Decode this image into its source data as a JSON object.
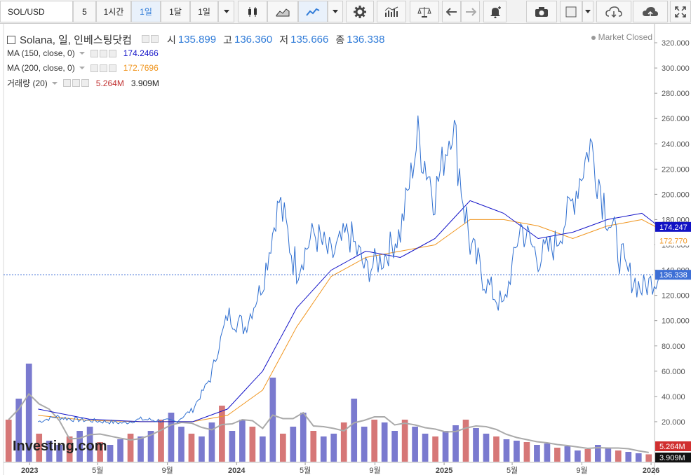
{
  "toolbar": {
    "symbol": "SOL/USD",
    "interval": "5",
    "btn_1h": "1시간",
    "btn_1d": "1일",
    "btn_1mo": "1달",
    "btn_range": "1일",
    "icons": [
      "chevron-down-icon",
      "candlestick-icon",
      "area-chart-icon",
      "line-chart-icon",
      "chevron-down-icon",
      "gear-icon",
      "indicators-icon",
      "balance-scale-icon",
      "undo-icon",
      "redo-icon",
      "alert-bell-icon",
      "camera-icon",
      "color-box-icon",
      "chevron-down-icon",
      "cloud-download-icon",
      "cloud-upload-icon",
      "fullscreen-icon"
    ]
  },
  "legend": {
    "title": "Solana, 일, 인베스팅닷컴",
    "open_label": "시",
    "open": "135.899",
    "high_label": "고",
    "high": "136.360",
    "low_label": "저",
    "low": "135.666",
    "close_label": "종",
    "close": "136.338",
    "ma150_label": "MA (150, close, 0)",
    "ma150_value": "174.2466",
    "ma200_label": "MA (200, close, 0)",
    "ma200_value": "172.7696",
    "vol_label": "거래량 (20)",
    "vol_value": "5.264M",
    "vol_ma_value": "3.909M",
    "market_status": "Market Closed"
  },
  "colors": {
    "price": "#2f6fd0",
    "ma150": "#1414c8",
    "ma200": "#f0951e",
    "vol_up": "#4d4dbf",
    "vol_down": "#c84a4a",
    "last_price_tag": "#3d6fd6",
    "ma150_tag": "#1212c4",
    "ma200_tag": "#f0951e"
  },
  "watermark": "Investing.com",
  "chart_data": {
    "type": "line",
    "y_ticks": [
      "20.000",
      "40.000",
      "60.000",
      "80.000",
      "100.000",
      "120.000",
      "140.000",
      "160.000",
      "180.000",
      "200.000",
      "220.000",
      "240.000",
      "260.000",
      "280.000",
      "300.000",
      "320.000"
    ],
    "x_labels": [
      "2023",
      "5월",
      "9월",
      "2024",
      "5월",
      "9월",
      "2025",
      "5월",
      "9월",
      "2026"
    ],
    "ylim": [
      0,
      325
    ],
    "last_price_label": "136.338",
    "ma150_label": "174.247",
    "ma200_label": "172.770",
    "vol_label": "5.264M",
    "vol_ma_label": "3.909M",
    "series": [
      {
        "name": "Solana",
        "x": [
          "2023-01",
          "2023-02",
          "2023-03",
          "2023-04",
          "2023-05",
          "2023-06",
          "2023-07",
          "2023-08",
          "2023-09",
          "2023-10",
          "2023-11",
          "2023-12",
          "2024-01",
          "2024-02",
          "2024-03",
          "2024-04",
          "2024-05",
          "2024-06",
          "2024-07",
          "2024-08",
          "2024-09",
          "2024-10",
          "2024-11",
          "2024-12",
          "2025-01",
          "2025-02",
          "2025-03",
          "2025-04",
          "2025-05",
          "2025-06",
          "2025-07",
          "2025-08",
          "2025-09",
          "2025-10",
          "2025-11",
          "2025-12",
          "2026-01"
        ],
        "values": [
          20,
          24,
          22,
          21,
          20,
          19,
          22,
          21,
          20,
          30,
          55,
          105,
          95,
          130,
          195,
          140,
          170,
          150,
          170,
          140,
          150,
          170,
          245,
          200,
          258,
          160,
          130,
          110,
          175,
          150,
          160,
          195,
          240,
          185,
          140,
          125,
          136
        ]
      },
      {
        "name": "MA (150, close, 0)",
        "x": [
          "2023-01",
          "2023-04",
          "2023-07",
          "2023-10",
          "2023-12",
          "2024-02",
          "2024-04",
          "2024-06",
          "2024-08",
          "2024-10",
          "2024-12",
          "2025-02",
          "2025-04",
          "2025-06",
          "2025-08",
          "2025-10",
          "2025-12",
          "2026-01"
        ],
        "values": [
          30,
          22,
          20,
          20,
          30,
          60,
          110,
          140,
          155,
          150,
          165,
          195,
          185,
          165,
          170,
          180,
          185,
          174.2466
        ]
      },
      {
        "name": "MA (200, close, 0)",
        "x": [
          "2023-01",
          "2023-04",
          "2023-07",
          "2023-10",
          "2023-12",
          "2024-02",
          "2024-04",
          "2024-06",
          "2024-08",
          "2024-10",
          "2024-12",
          "2025-02",
          "2025-04",
          "2025-06",
          "2025-08",
          "2025-10",
          "2025-12",
          "2026-01"
        ],
        "values": [
          25,
          21,
          20,
          20,
          25,
          45,
          95,
          135,
          150,
          155,
          160,
          180,
          180,
          175,
          165,
          175,
          180,
          172.7696
        ]
      }
    ],
    "volume_ylim": [
      0,
      80
    ],
    "volume_values_m": [
      30,
      45,
      70,
      20,
      15,
      12,
      18,
      22,
      25,
      14,
      12,
      16,
      20,
      18,
      22,
      30,
      35,
      25,
      20,
      18,
      28,
      40,
      22,
      30,
      25,
      18,
      60,
      20,
      25,
      35,
      22,
      18,
      20,
      28,
      45,
      25,
      30,
      28,
      22,
      30,
      25,
      20,
      18,
      22,
      26,
      30,
      24,
      20,
      18,
      16,
      15,
      14,
      12,
      13,
      10,
      11,
      8,
      9,
      12,
      10,
      8,
      7,
      6,
      5.264
    ]
  }
}
